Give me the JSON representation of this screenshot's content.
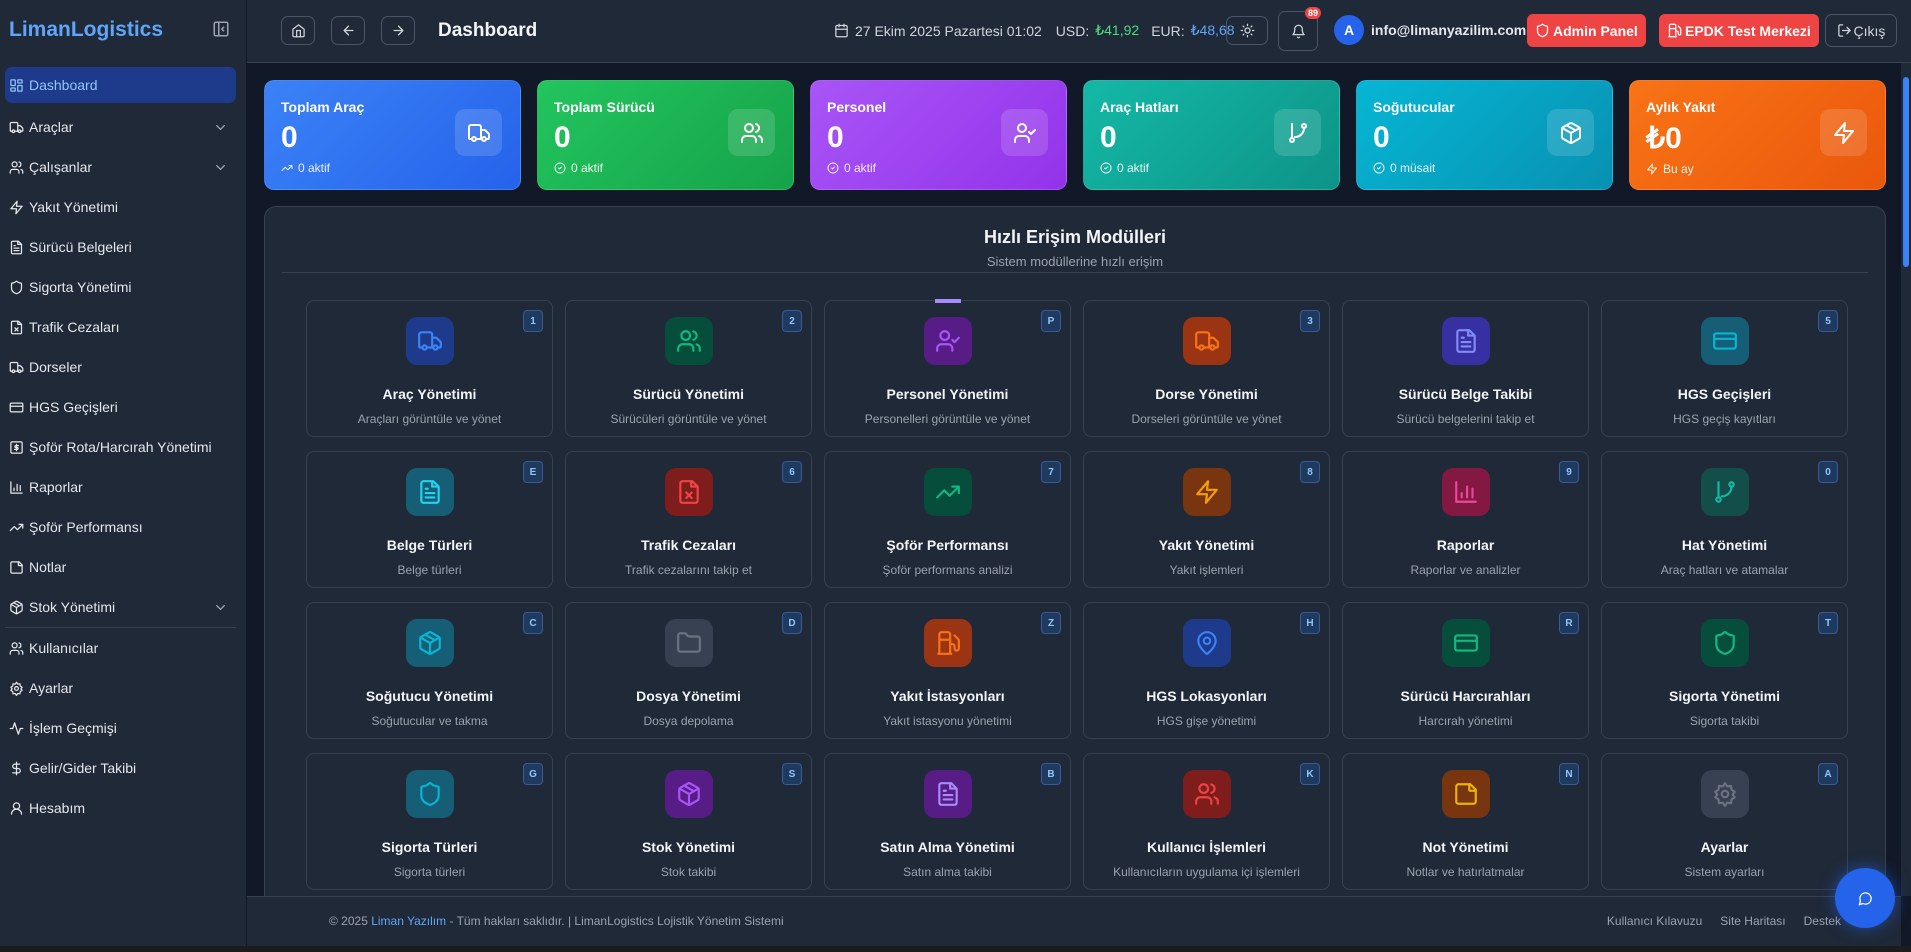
{
  "app": {
    "logo": "LimanLogistics"
  },
  "sidebar": {
    "items": [
      {
        "label": "Dashboard",
        "icon": "grid-icon",
        "active": true
      },
      {
        "label": "Araçlar",
        "icon": "truck-icon",
        "expandable": true
      },
      {
        "label": "Çalışanlar",
        "icon": "users-icon",
        "expandable": true
      },
      {
        "label": "Yakıt Yönetimi",
        "icon": "zap-icon"
      },
      {
        "label": "Sürücü Belgeleri",
        "icon": "file-text-icon"
      },
      {
        "label": "Sigorta Yönetimi",
        "icon": "shield-icon"
      },
      {
        "label": "Trafik Cezaları",
        "icon": "file-x-icon"
      },
      {
        "label": "Dorseler",
        "icon": "truck-icon"
      },
      {
        "label": "HGS Geçişleri",
        "icon": "credit-card-icon"
      },
      {
        "label": "Şoför Rota/Harcırah Yönetimi",
        "icon": "receipt-icon"
      },
      {
        "label": "Raporlar",
        "icon": "bar-chart-icon"
      },
      {
        "label": "Şoför Performansı",
        "icon": "trending-up-icon"
      },
      {
        "label": "Notlar",
        "icon": "sticky-note-icon"
      },
      {
        "label": "Stok Yönetimi",
        "icon": "box-icon",
        "expandable": true,
        "separator_after": true
      },
      {
        "label": "Kullanıcılar",
        "icon": "users-icon"
      },
      {
        "label": "Ayarlar",
        "icon": "settings-icon"
      },
      {
        "label": "İşlem Geçmişi",
        "icon": "activity-icon"
      },
      {
        "label": "Gelir/Gider Takibi",
        "icon": "dollar-icon"
      },
      {
        "label": "Hesabım",
        "icon": "user-icon"
      }
    ]
  },
  "header": {
    "title": "Dashboard",
    "date": "27 Ekim 2025 Pazartesi 01:02",
    "usd_label": "USD:",
    "usd_value": "₺41,92",
    "eur_label": "EUR:",
    "eur_value": "₺48,68",
    "notification_count": "89",
    "avatar_letter": "A",
    "email": "info@limanyazilim.com",
    "admin_panel": "Admin Panel",
    "epdk": "EPDK Test Merkezi",
    "logout": "Çıkış"
  },
  "stats": [
    {
      "label": "Toplam Araç",
      "value": "0",
      "sub": "0 aktif",
      "icon": "truck-icon",
      "sub_icon": "trending-up-icon",
      "colors": [
        "#3b82f6",
        "#2563eb"
      ]
    },
    {
      "label": "Toplam Sürücü",
      "value": "0",
      "sub": "0 aktif",
      "icon": "users-icon",
      "sub_icon": "check-circle-icon",
      "colors": [
        "#22c55e",
        "#16a34a"
      ]
    },
    {
      "label": "Personel",
      "value": "0",
      "sub": "0 aktif",
      "icon": "user-check-icon",
      "sub_icon": "check-circle-icon",
      "colors": [
        "#a855f7",
        "#9333ea"
      ]
    },
    {
      "label": "Araç Hatları",
      "value": "0",
      "sub": "0 aktif",
      "icon": "git-branch-icon",
      "sub_icon": "check-circle-icon",
      "colors": [
        "#14b8a6",
        "#0d9488"
      ]
    },
    {
      "label": "Soğutucular",
      "value": "0",
      "sub": "0 müsait",
      "icon": "box-icon",
      "sub_icon": "check-circle-icon",
      "colors": [
        "#06b6d4",
        "#0891b2"
      ]
    },
    {
      "label": "Aylık Yakıt",
      "value": "₺0",
      "sub": "Bu ay",
      "icon": "zap-icon",
      "sub_icon": "zap-icon",
      "colors": [
        "#f97316",
        "#ea580c"
      ]
    }
  ],
  "quick": {
    "title": "Hızlı Erişim Modülleri",
    "subtitle": "Sistem modüllerine hızlı erişim",
    "modules": [
      {
        "title": "Araç Yönetimi",
        "desc": "Araçları görüntüle ve yönet",
        "key": "1",
        "icon": "truck-icon",
        "bg": "#1e3a8a",
        "fg": "#3b82f6"
      },
      {
        "title": "Sürücü Yönetimi",
        "desc": "Sürücüleri görüntüle ve yönet",
        "key": "2",
        "icon": "users-icon",
        "bg": "#064e3b",
        "fg": "#10b981"
      },
      {
        "title": "Personel Yönetimi",
        "desc": "Personelleri görüntüle ve yönet",
        "key": "P",
        "icon": "user-check-icon",
        "bg": "#581c87",
        "fg": "#a855f7",
        "highlighted": true
      },
      {
        "title": "Dorse Yönetimi",
        "desc": "Dorseleri görüntüle ve yönet",
        "key": "3",
        "icon": "truck-icon",
        "bg": "#9a3412",
        "fg": "#f97316"
      },
      {
        "title": "Sürücü Belge Takibi",
        "desc": "Sürücü belgelerini takip et",
        "key": "",
        "icon": "file-text-icon",
        "bg": "#3730a3",
        "fg": "#818cf8"
      },
      {
        "title": "HGS Geçişleri",
        "desc": "HGS geçiş kayıtları",
        "key": "5",
        "icon": "credit-card-icon",
        "bg": "#155e75",
        "fg": "#06b6d4"
      },
      {
        "title": "Belge Türleri",
        "desc": "Belge türleri",
        "key": "E",
        "icon": "file-text-icon",
        "bg": "#155e75",
        "fg": "#22d3ee"
      },
      {
        "title": "Trafik Cezaları",
        "desc": "Trafik cezalarını takip et",
        "key": "6",
        "icon": "file-x-icon",
        "bg": "#7f1d1d",
        "fg": "#ef4444"
      },
      {
        "title": "Şoför Performansı",
        "desc": "Şoför performans analizi",
        "key": "7",
        "icon": "trending-up-icon",
        "bg": "#064e3b",
        "fg": "#10b981"
      },
      {
        "title": "Yakıt Yönetimi",
        "desc": "Yakıt işlemleri",
        "key": "8",
        "icon": "zap-icon",
        "bg": "#78350f",
        "fg": "#f59e0b"
      },
      {
        "title": "Raporlar",
        "desc": "Raporlar ve analizler",
        "key": "9",
        "icon": "bar-chart-icon",
        "bg": "#831843",
        "fg": "#ec4899"
      },
      {
        "title": "Hat Yönetimi",
        "desc": "Araç hatları ve atamalar",
        "key": "0",
        "icon": "git-branch-icon",
        "bg": "#134e4a",
        "fg": "#14b8a6"
      },
      {
        "title": "Soğutucu Yönetimi",
        "desc": "Soğutucular ve takma",
        "key": "C",
        "icon": "box-icon",
        "bg": "#155e75",
        "fg": "#06b6d4"
      },
      {
        "title": "Dosya Yönetimi",
        "desc": "Dosya depolama",
        "key": "D",
        "icon": "folder-icon",
        "bg": "#374151",
        "fg": "#6b7280"
      },
      {
        "title": "Yakıt İstasyonları",
        "desc": "Yakıt istasyonu yönetimi",
        "key": "Z",
        "icon": "fuel-icon",
        "bg": "#9a3412",
        "fg": "#f97316"
      },
      {
        "title": "HGS Lokasyonları",
        "desc": "HGS gişe yönetimi",
        "key": "H",
        "icon": "map-pin-icon",
        "bg": "#1e3a8a",
        "fg": "#3b82f6"
      },
      {
        "title": "Sürücü Harcırahları",
        "desc": "Harcırah yönetimi",
        "key": "R",
        "icon": "credit-card-icon",
        "bg": "#064e3b",
        "fg": "#10b981"
      },
      {
        "title": "Sigorta Yönetimi",
        "desc": "Sigorta takibi",
        "key": "T",
        "icon": "shield-icon",
        "bg": "#064e3b",
        "fg": "#10b981"
      },
      {
        "title": "Sigorta Türleri",
        "desc": "Sigorta türleri",
        "key": "G",
        "icon": "shield-icon",
        "bg": "#155e75",
        "fg": "#06b6d4"
      },
      {
        "title": "Stok Yönetimi",
        "desc": "Stok takibi",
        "key": "S",
        "icon": "box-icon",
        "bg": "#581c87",
        "fg": "#a855f7"
      },
      {
        "title": "Satın Alma Yönetimi",
        "desc": "Satın alma takibi",
        "key": "B",
        "icon": "file-text-icon",
        "bg": "#581c87",
        "fg": "#a78bfa"
      },
      {
        "title": "Kullanıcı İşlemleri",
        "desc": "Kullanıcıların uygulama içi işlemleri",
        "key": "K",
        "icon": "users-icon",
        "bg": "#7f1d1d",
        "fg": "#ef4444"
      },
      {
        "title": "Not Yönetimi",
        "desc": "Notlar ve hatırlatmalar",
        "key": "N",
        "icon": "sticky-note-icon",
        "bg": "#78350f",
        "fg": "#eab308"
      },
      {
        "title": "Ayarlar",
        "desc": "Sistem ayarları",
        "key": "A",
        "icon": "settings-icon",
        "bg": "#374151",
        "fg": "#6b7280"
      }
    ]
  },
  "footer": {
    "copyright": "© 2025",
    "company": "Liman Yazılım",
    "rest": " - Tüm hakları saklıdır. | LimanLogistics Lojistik Yönetim Sistemi",
    "links": [
      "Kullanıcı Kılavuzu",
      "Site Haritası",
      "Destek"
    ]
  }
}
